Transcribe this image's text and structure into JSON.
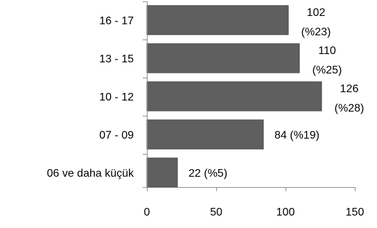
{
  "colors": {
    "bar": "#5f5f5f",
    "bar_stroke": "#4a4a4a",
    "axis": "#8c8c8c",
    "text": "#000000"
  },
  "chart_data": {
    "type": "bar",
    "orientation": "horizontal",
    "categories": [
      "16 - 17",
      "13 - 15",
      "10 - 12",
      "07 - 09",
      "06 ve daha küçük"
    ],
    "values": [
      102,
      110,
      126,
      84,
      22
    ],
    "data_labels": [
      [
        "102",
        "(%23)"
      ],
      [
        "110",
        "(%25)"
      ],
      [
        "126",
        "(%28)"
      ],
      [
        "84 (%19)"
      ],
      [
        "22 (%5)"
      ]
    ],
    "x_ticks": [
      "0",
      "50",
      "100",
      "150"
    ],
    "xlim": [
      0,
      150
    ],
    "title": "",
    "xlabel": "",
    "ylabel": "",
    "grid": false,
    "legend": "none"
  }
}
